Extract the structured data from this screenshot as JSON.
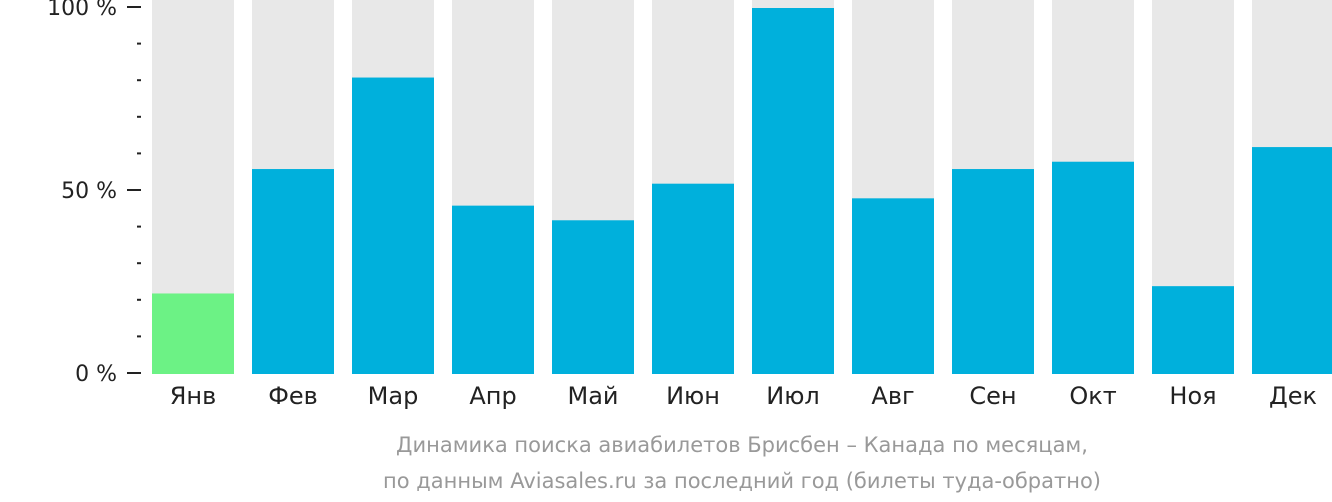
{
  "chart_data": {
    "type": "bar",
    "categories": [
      "Янв",
      "Фев",
      "Мар",
      "Апр",
      "Май",
      "Июн",
      "Июл",
      "Авг",
      "Сен",
      "Окт",
      "Ноя",
      "Дек"
    ],
    "values": [
      22,
      56,
      81,
      46,
      42,
      52,
      100,
      48,
      56,
      58,
      24,
      62
    ],
    "ylim": [
      0,
      100
    ],
    "y_ticks": [
      {
        "value": 0,
        "label": "0 %"
      },
      {
        "value": 50,
        "label": "50 %"
      },
      {
        "value": 100,
        "label": "100 %"
      }
    ],
    "minor_tick_step": 10,
    "caption_lines": [
      "Динамика поиска авиабилетов Брисбен – Канада по месяцам,",
      "по данным Aviasales.ru за последний год (билеты туда-обратно)"
    ],
    "colors": {
      "bar": "#00b0dc",
      "highlight_bar": "#6cf285",
      "track": "#e8e8e8",
      "axis": "#222222",
      "caption": "#999999"
    },
    "highlight_index": 0,
    "grid": false,
    "legend": "none"
  }
}
